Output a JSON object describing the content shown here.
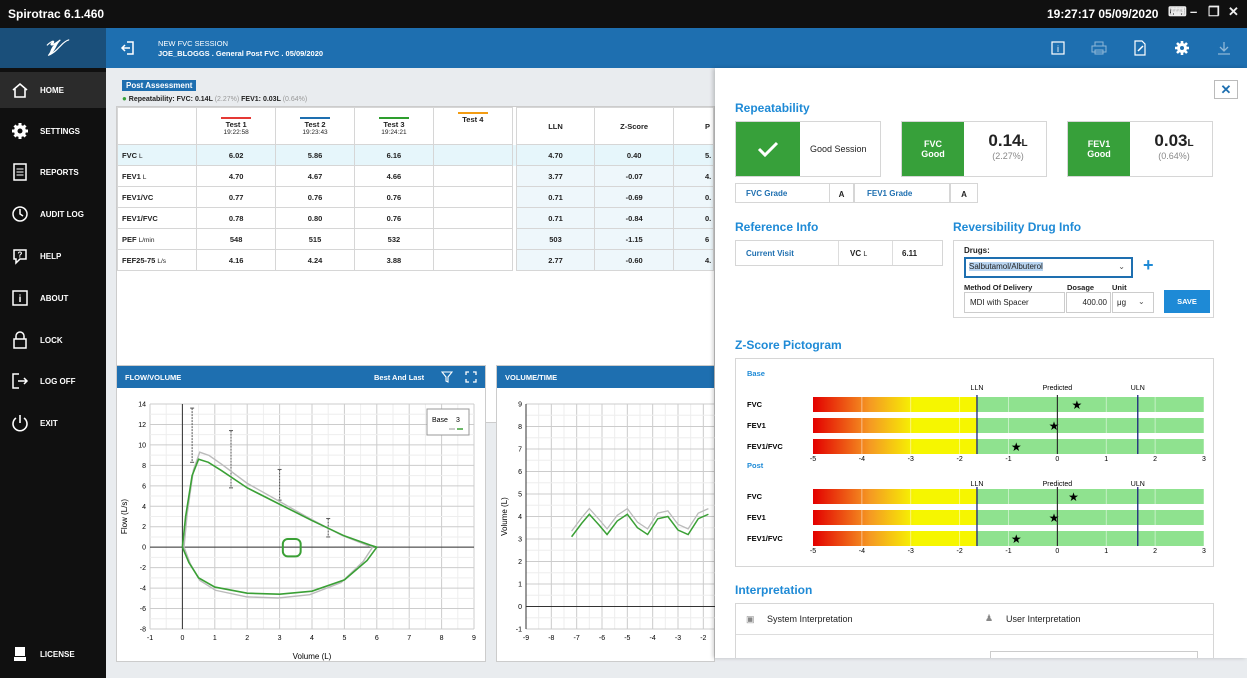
{
  "titlebar": {
    "app_name": "Spirotrac 6.1.460",
    "datetime": "19:27:17  05/09/2020"
  },
  "sidebar": {
    "items": [
      {
        "label": "HOME"
      },
      {
        "label": "SETTINGS"
      },
      {
        "label": "REPORTS"
      },
      {
        "label": "AUDIT LOG"
      },
      {
        "label": "HELP"
      },
      {
        "label": "ABOUT"
      },
      {
        "label": "LOCK"
      },
      {
        "label": "LOG OFF"
      },
      {
        "label": "EXIT"
      }
    ],
    "license_label": "LICENSE"
  },
  "header": {
    "session_title": "NEW FVC SESSION",
    "session_info": "JOE_BLOGGS .  General Post FVC  .  05/09/2020"
  },
  "summary": {
    "badge": "Post Assessment",
    "rep_prefix": "Repeatability:",
    "rep_fvc_label": "FVC:",
    "rep_fvc_value": "0.14L",
    "rep_fvc_pct": "(2.27%)",
    "rep_fev1_label": "FEV1:",
    "rep_fev1_value": "0.03L",
    "rep_fev1_pct": "(0.64%)"
  },
  "table": {
    "tests": [
      {
        "name": "Test 1",
        "time": "19:22:58",
        "color": "#e53935"
      },
      {
        "name": "Test 2",
        "time": "19:23:43",
        "color": "#1e6fb0"
      },
      {
        "name": "Test 3",
        "time": "19:24:21",
        "color": "#2e9e2e"
      },
      {
        "name": "Test 4",
        "time": "",
        "color": "#f39c12"
      }
    ],
    "pred_headers": [
      "LLN",
      "Z-Score",
      "P"
    ],
    "rows": [
      {
        "param": "FVC",
        "unit": "L",
        "t1": "6.02",
        "t2": "5.86",
        "t3": "6.16",
        "t4": "",
        "lln": "4.70",
        "z": "0.40",
        "p": "5."
      },
      {
        "param": "FEV1",
        "unit": "L",
        "t1": "4.70",
        "t2": "4.67",
        "t3": "4.66",
        "t4": "",
        "lln": "3.77",
        "z": "-0.07",
        "p": "4."
      },
      {
        "param": "FEV1/VC",
        "unit": "",
        "t1": "0.77",
        "t2": "0.76",
        "t3": "0.76",
        "t4": "",
        "lln": "0.71",
        "z": "-0.69",
        "p": "0."
      },
      {
        "param": "FEV1/FVC",
        "unit": "",
        "t1": "0.78",
        "t2": "0.80",
        "t3": "0.76",
        "t4": "",
        "lln": "0.71",
        "z": "-0.84",
        "p": "0."
      },
      {
        "param": "PEF",
        "unit": "L/min",
        "t1": "548",
        "t2": "515",
        "t3": "532",
        "t4": "",
        "lln": "503",
        "z": "-1.15",
        "p": "6"
      },
      {
        "param": "FEF25-75",
        "unit": "L/s",
        "t1": "4.16",
        "t2": "4.24",
        "t3": "3.88",
        "t4": "",
        "lln": "2.77",
        "z": "-0.60",
        "p": "4."
      }
    ]
  },
  "flow_volume": {
    "title": "FLOW/VOLUME",
    "mode": "Best And Last",
    "legend_label": "Base",
    "legend_value": "3",
    "xlabel": "Volume (L)",
    "ylabel": "Flow (L/s)",
    "x_ticks": [
      "-1",
      "0",
      "1",
      "2",
      "3",
      "4",
      "5",
      "6",
      "7",
      "8",
      "9"
    ],
    "y_ticks": [
      "14",
      "12",
      "10",
      "8",
      "6",
      "4",
      "2",
      "0",
      "-2",
      "-4",
      "-6",
      "-8"
    ]
  },
  "volume_time": {
    "title": "VOLUME/TIME",
    "ylabel": "Volume (L)",
    "x_ticks": [
      "-9",
      "-8",
      "-7",
      "-6",
      "-5",
      "-4",
      "-3",
      "-2"
    ],
    "y_ticks": [
      "9",
      "8",
      "7",
      "6",
      "5",
      "4",
      "3",
      "2",
      "1",
      "0",
      "-1"
    ]
  },
  "right_panel": {
    "repeatability_title": "Repeatability",
    "session_status": "Good Session",
    "fvc": {
      "label": "FVC",
      "grade_word": "Good",
      "value": "0.14",
      "unit": "L",
      "pct": "(2.27%)"
    },
    "fev1": {
      "label": "FEV1",
      "grade_word": "Good",
      "value": "0.03",
      "unit": "L",
      "pct": "(0.64%)"
    },
    "fvc_grade_label": "FVC Grade",
    "fvc_grade": "A",
    "fev1_grade_label": "FEV1 Grade",
    "fev1_grade": "A",
    "reference_title": "Reference Info",
    "current_visit": "Current Visit",
    "vc_label": "VC",
    "vc_unit": "L",
    "vc_value": "6.11",
    "drug_title": "Reversibility Drug Info",
    "drugs_label": "Drugs:",
    "drug_value": "Salbutamol/Albuterol",
    "method_label": "Method Of Delivery",
    "method_value": "MDI with Spacer",
    "dosage_label": "Dosage",
    "dosage_value": "400.00",
    "unit_label": "Unit",
    "unit_value": "μg",
    "save_label": "SAVE",
    "zscore_title": "Z-Score Pictogram",
    "base_label": "Base",
    "post_label": "Post",
    "marker_labels": [
      "LLN",
      "Predicted",
      "ULN"
    ],
    "z_params": [
      "FVC",
      "FEV1",
      "FEV1/FVC"
    ],
    "z_axis": [
      "-5",
      "-4",
      "-3",
      "-2",
      "-1",
      "0",
      "1",
      "2",
      "3"
    ],
    "interpretation_title": "Interpretation",
    "system_interp": "System Interpretation",
    "user_interp": "User Interpretation",
    "colors": {
      "accent": "#1e6fb0",
      "good": "#37a03a",
      "section": "#1e8ad6"
    }
  },
  "chart_data": [
    {
      "type": "line",
      "title": "FLOW/VOLUME",
      "xlabel": "Volume (L)",
      "ylabel": "Flow (L/s)",
      "xlim": [
        -1,
        9
      ],
      "ylim": [
        -8,
        14
      ],
      "grid": true,
      "legend": "top-right",
      "series": [
        {
          "name": "Base",
          "x": [
            0,
            0.1,
            0.3,
            0.5,
            0.8,
            1.2,
            2,
            3,
            4,
            5,
            5.8,
            6.0,
            5.7,
            5.0,
            4.0,
            3.0,
            2.0,
            1.0,
            0.5,
            0.2,
            0
          ],
          "y": [
            0,
            3,
            7,
            8.6,
            8.3,
            7.5,
            5.8,
            4.2,
            2.6,
            1.1,
            0.2,
            0,
            -1.3,
            -3.2,
            -4.3,
            -4.6,
            -4.5,
            -3.9,
            -3.0,
            -1.5,
            0
          ]
        }
      ]
    },
    {
      "type": "line",
      "title": "VOLUME/TIME",
      "ylabel": "Volume (L)",
      "xlim": [
        -9,
        -1.5
      ],
      "ylim": [
        -1,
        9
      ],
      "grid": true,
      "series": [
        {
          "x": [
            -7.2,
            -6.8,
            -6.5,
            -6.1,
            -5.8,
            -5.4,
            -5.0,
            -4.6,
            -4.2,
            -3.8,
            -3.4,
            -3.0,
            -2.6,
            -2.2,
            -1.8
          ],
          "y": [
            3.1,
            3.7,
            4.1,
            3.6,
            3.2,
            3.8,
            4.1,
            3.5,
            3.2,
            3.9,
            4.0,
            3.4,
            3.2,
            3.9,
            4.1
          ]
        }
      ]
    }
  ]
}
